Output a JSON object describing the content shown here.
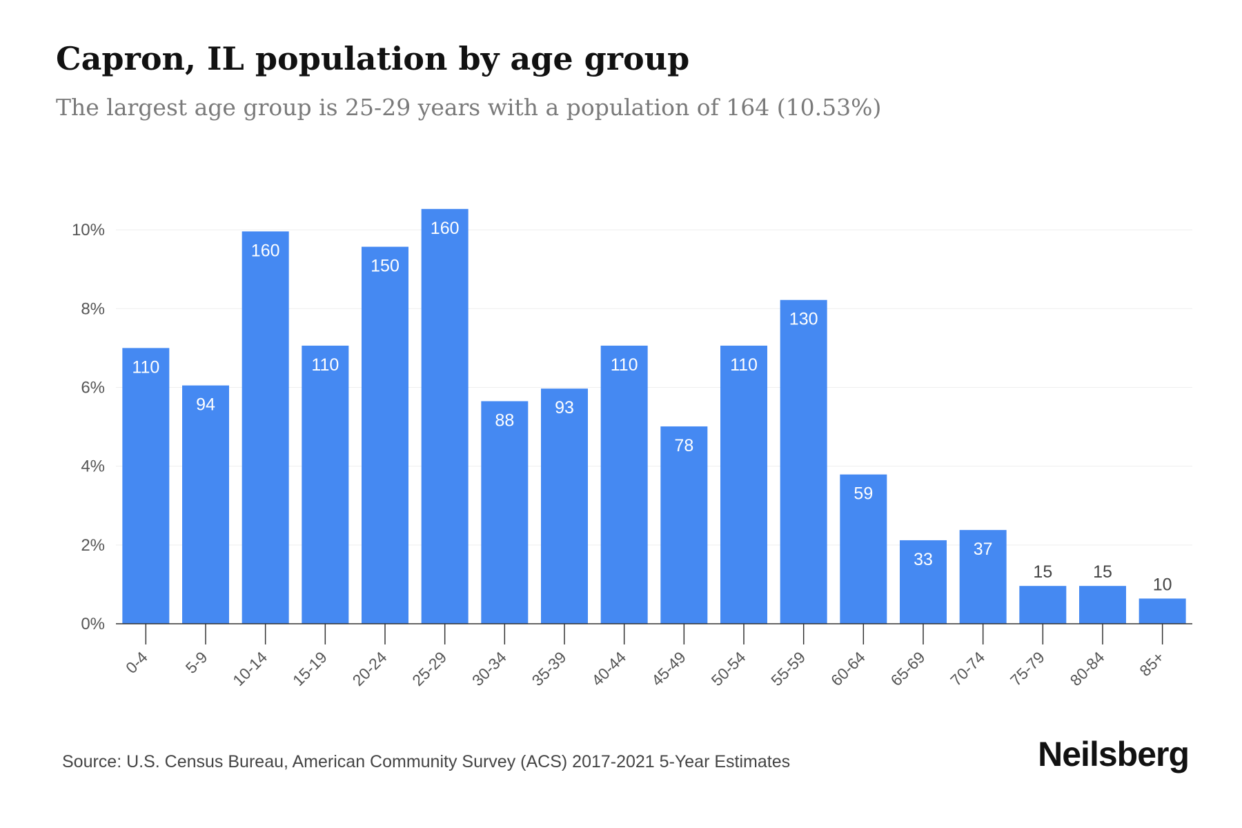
{
  "title": "Capron, IL population by age group",
  "subtitle": "The largest age group is 25-29 years with a population of 164 (10.53%)",
  "source": "Source: U.S. Census Bureau, American Community Survey (ACS) 2017-2021 5-Year Estimates",
  "brand": "Neilsberg",
  "colors": {
    "bar": "#4589f2",
    "label_inside": "#ffffff",
    "label_outside": "#444444",
    "grid": "#eeeeee",
    "axis": "#333333",
    "tick_text": "#555555"
  },
  "chart_data": {
    "type": "bar",
    "categories": [
      "0-4",
      "5-9",
      "10-14",
      "15-19",
      "20-24",
      "25-29",
      "30-34",
      "35-39",
      "40-44",
      "45-49",
      "50-54",
      "55-59",
      "60-64",
      "65-69",
      "70-74",
      "75-79",
      "80-84",
      "85+"
    ],
    "values": [
      7.0,
      6.05,
      9.96,
      7.06,
      9.57,
      10.53,
      5.65,
      5.97,
      7.06,
      5.01,
      7.06,
      8.22,
      3.79,
      2.12,
      2.38,
      0.96,
      0.96,
      0.64
    ],
    "data_labels": [
      "110",
      "94",
      "160",
      "110",
      "150",
      "160",
      "88",
      "93",
      "110",
      "78",
      "110",
      "130",
      "59",
      "33",
      "37",
      "15",
      "15",
      "10"
    ],
    "y_ticks": [
      "0%",
      "2%",
      "4%",
      "6%",
      "8%",
      "10%"
    ],
    "y_tick_values": [
      0,
      2,
      4,
      6,
      8,
      10
    ],
    "ylim": [
      0,
      11
    ],
    "grid": true,
    "legend": "none"
  }
}
